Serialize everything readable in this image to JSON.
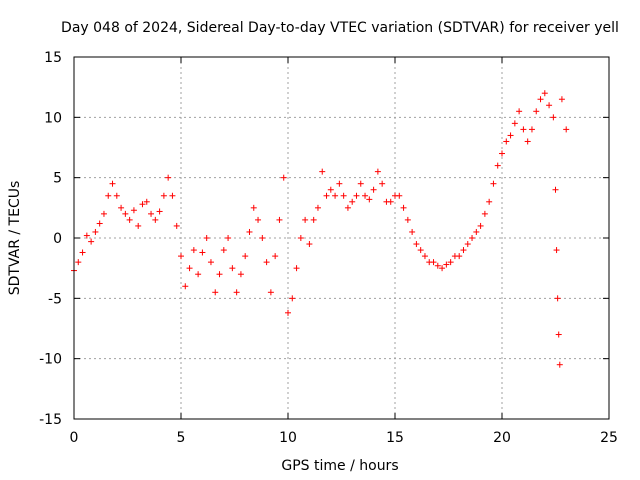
{
  "chart_data": {
    "type": "scatter",
    "title": "Day 048 of 2024, Sidereal Day-to-day VTEC variation (SDTVAR) for receiver yell",
    "xlabel": "GPS time / hours",
    "ylabel": "SDTVAR / TECUs",
    "xlim": [
      0,
      25
    ],
    "ylim": [
      -15,
      15
    ],
    "xticks": [
      0,
      5,
      10,
      15,
      20,
      25
    ],
    "yticks": [
      -15,
      -10,
      -5,
      0,
      5,
      10,
      15
    ],
    "xtick_labels": [
      "0",
      "5",
      "10",
      "15",
      "20",
      "25"
    ],
    "ytick_labels": [
      "-15",
      "-10",
      "-5",
      "0",
      "5",
      "10",
      "15"
    ],
    "grid": true,
    "marker": "+",
    "color": "#ff0000",
    "series": [
      {
        "name": "SDTVAR",
        "points": [
          [
            0.0,
            -2.7
          ],
          [
            0.2,
            -2.0
          ],
          [
            0.4,
            -1.2
          ],
          [
            0.6,
            0.2
          ],
          [
            0.8,
            -0.3
          ],
          [
            1.0,
            0.5
          ],
          [
            1.2,
            1.2
          ],
          [
            1.4,
            2.0
          ],
          [
            1.6,
            3.5
          ],
          [
            1.8,
            4.5
          ],
          [
            2.0,
            3.5
          ],
          [
            2.2,
            2.5
          ],
          [
            2.4,
            2.0
          ],
          [
            2.6,
            1.5
          ],
          [
            2.8,
            2.3
          ],
          [
            3.0,
            1.0
          ],
          [
            3.2,
            2.8
          ],
          [
            3.4,
            3.0
          ],
          [
            3.6,
            2.0
          ],
          [
            3.8,
            1.5
          ],
          [
            4.0,
            2.2
          ],
          [
            4.2,
            3.5
          ],
          [
            4.4,
            5.0
          ],
          [
            4.6,
            3.5
          ],
          [
            4.8,
            1.0
          ],
          [
            5.0,
            -1.5
          ],
          [
            5.2,
            -4.0
          ],
          [
            5.4,
            -2.5
          ],
          [
            5.6,
            -1.0
          ],
          [
            5.8,
            -3.0
          ],
          [
            6.0,
            -1.2
          ],
          [
            6.2,
            0.0
          ],
          [
            6.4,
            -2.0
          ],
          [
            6.6,
            -4.5
          ],
          [
            6.8,
            -3.0
          ],
          [
            7.0,
            -1.0
          ],
          [
            7.2,
            0.0
          ],
          [
            7.4,
            -2.5
          ],
          [
            7.6,
            -4.5
          ],
          [
            7.8,
            -3.0
          ],
          [
            8.0,
            -1.5
          ],
          [
            8.2,
            0.5
          ],
          [
            8.4,
            2.5
          ],
          [
            8.6,
            1.5
          ],
          [
            8.8,
            0.0
          ],
          [
            9.0,
            -2.0
          ],
          [
            9.2,
            -4.5
          ],
          [
            9.4,
            -1.5
          ],
          [
            9.6,
            1.5
          ],
          [
            9.8,
            5.0
          ],
          [
            10.0,
            -6.2
          ],
          [
            10.2,
            -5.0
          ],
          [
            10.4,
            -2.5
          ],
          [
            10.6,
            0.0
          ],
          [
            10.8,
            1.5
          ],
          [
            11.0,
            -0.5
          ],
          [
            11.2,
            1.5
          ],
          [
            11.4,
            2.5
          ],
          [
            11.6,
            5.5
          ],
          [
            11.8,
            3.5
          ],
          [
            12.0,
            4.0
          ],
          [
            12.2,
            3.5
          ],
          [
            12.4,
            4.5
          ],
          [
            12.6,
            3.5
          ],
          [
            12.8,
            2.5
          ],
          [
            13.0,
            3.0
          ],
          [
            13.2,
            3.5
          ],
          [
            13.4,
            4.5
          ],
          [
            13.6,
            3.5
          ],
          [
            13.8,
            3.2
          ],
          [
            14.0,
            4.0
          ],
          [
            14.2,
            5.5
          ],
          [
            14.4,
            4.5
          ],
          [
            14.6,
            3.0
          ],
          [
            14.8,
            3.0
          ],
          [
            15.0,
            3.5
          ],
          [
            15.2,
            3.5
          ],
          [
            15.4,
            2.5
          ],
          [
            15.6,
            1.5
          ],
          [
            15.8,
            0.5
          ],
          [
            16.0,
            -0.5
          ],
          [
            16.2,
            -1.0
          ],
          [
            16.4,
            -1.5
          ],
          [
            16.6,
            -2.0
          ],
          [
            16.8,
            -2.0
          ],
          [
            17.0,
            -2.3
          ],
          [
            17.2,
            -2.5
          ],
          [
            17.4,
            -2.2
          ],
          [
            17.6,
            -2.0
          ],
          [
            17.8,
            -1.5
          ],
          [
            18.0,
            -1.5
          ],
          [
            18.2,
            -1.0
          ],
          [
            18.4,
            -0.5
          ],
          [
            18.6,
            0.0
          ],
          [
            18.8,
            0.5
          ],
          [
            19.0,
            1.0
          ],
          [
            19.2,
            2.0
          ],
          [
            19.4,
            3.0
          ],
          [
            19.6,
            4.5
          ],
          [
            19.8,
            6.0
          ],
          [
            20.0,
            7.0
          ],
          [
            20.2,
            8.0
          ],
          [
            20.4,
            8.5
          ],
          [
            20.6,
            9.5
          ],
          [
            20.8,
            10.5
          ],
          [
            21.0,
            9.0
          ],
          [
            21.2,
            8.0
          ],
          [
            21.4,
            9.0
          ],
          [
            21.6,
            10.5
          ],
          [
            21.8,
            11.5
          ],
          [
            22.0,
            12.0
          ],
          [
            22.2,
            11.0
          ],
          [
            22.4,
            10.0
          ],
          [
            22.5,
            4.0
          ],
          [
            22.55,
            -1.0
          ],
          [
            22.6,
            -5.0
          ],
          [
            22.65,
            -8.0
          ],
          [
            22.7,
            -10.5
          ],
          [
            22.8,
            11.5
          ],
          [
            23.0,
            9.0
          ]
        ]
      }
    ]
  }
}
